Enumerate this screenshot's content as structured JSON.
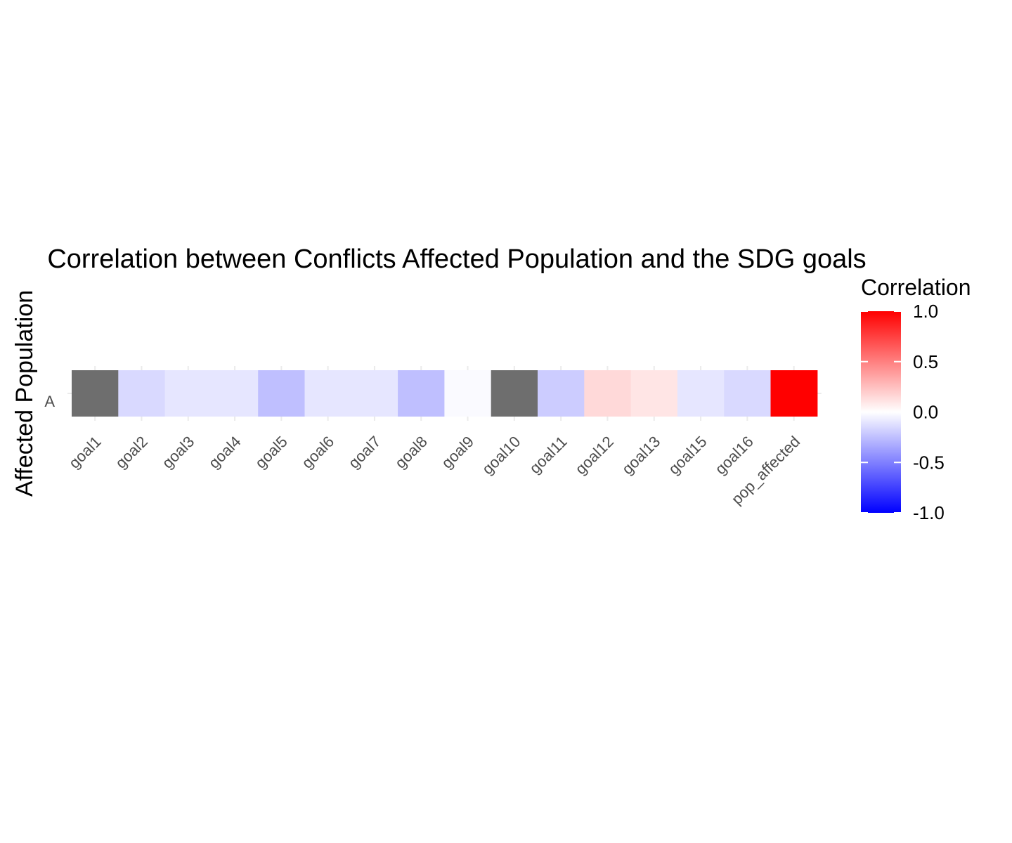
{
  "chart_data": {
    "type": "heatmap",
    "title": "Correlation between Conflicts Affected Population and the SDG goals",
    "xlabel": "",
    "ylabel": "Affected Population",
    "x_categories": [
      "goal1",
      "goal2",
      "goal3",
      "goal4",
      "goal5",
      "goal6",
      "goal7",
      "goal8",
      "goal9",
      "goal10",
      "goal11",
      "goal12",
      "goal13",
      "goal15",
      "goal16",
      "pop_affected"
    ],
    "y_categories": [
      "A"
    ],
    "values": [
      null,
      -0.15,
      -0.1,
      -0.1,
      -0.25,
      -0.1,
      -0.1,
      -0.25,
      -0.02,
      null,
      -0.2,
      0.15,
      0.1,
      -0.1,
      -0.15,
      1.0
    ],
    "na_color": "#6E6E6E",
    "color_scale": {
      "low": "#0000FF",
      "mid": "#FFFFFF",
      "high": "#FF0000",
      "limits": [
        -1,
        1
      ]
    },
    "legend": {
      "title": "Correlation",
      "breaks": [
        "1.0",
        "0.5",
        "0.0",
        "-0.5",
        "-1.0"
      ],
      "position": "right"
    },
    "grid": true
  }
}
